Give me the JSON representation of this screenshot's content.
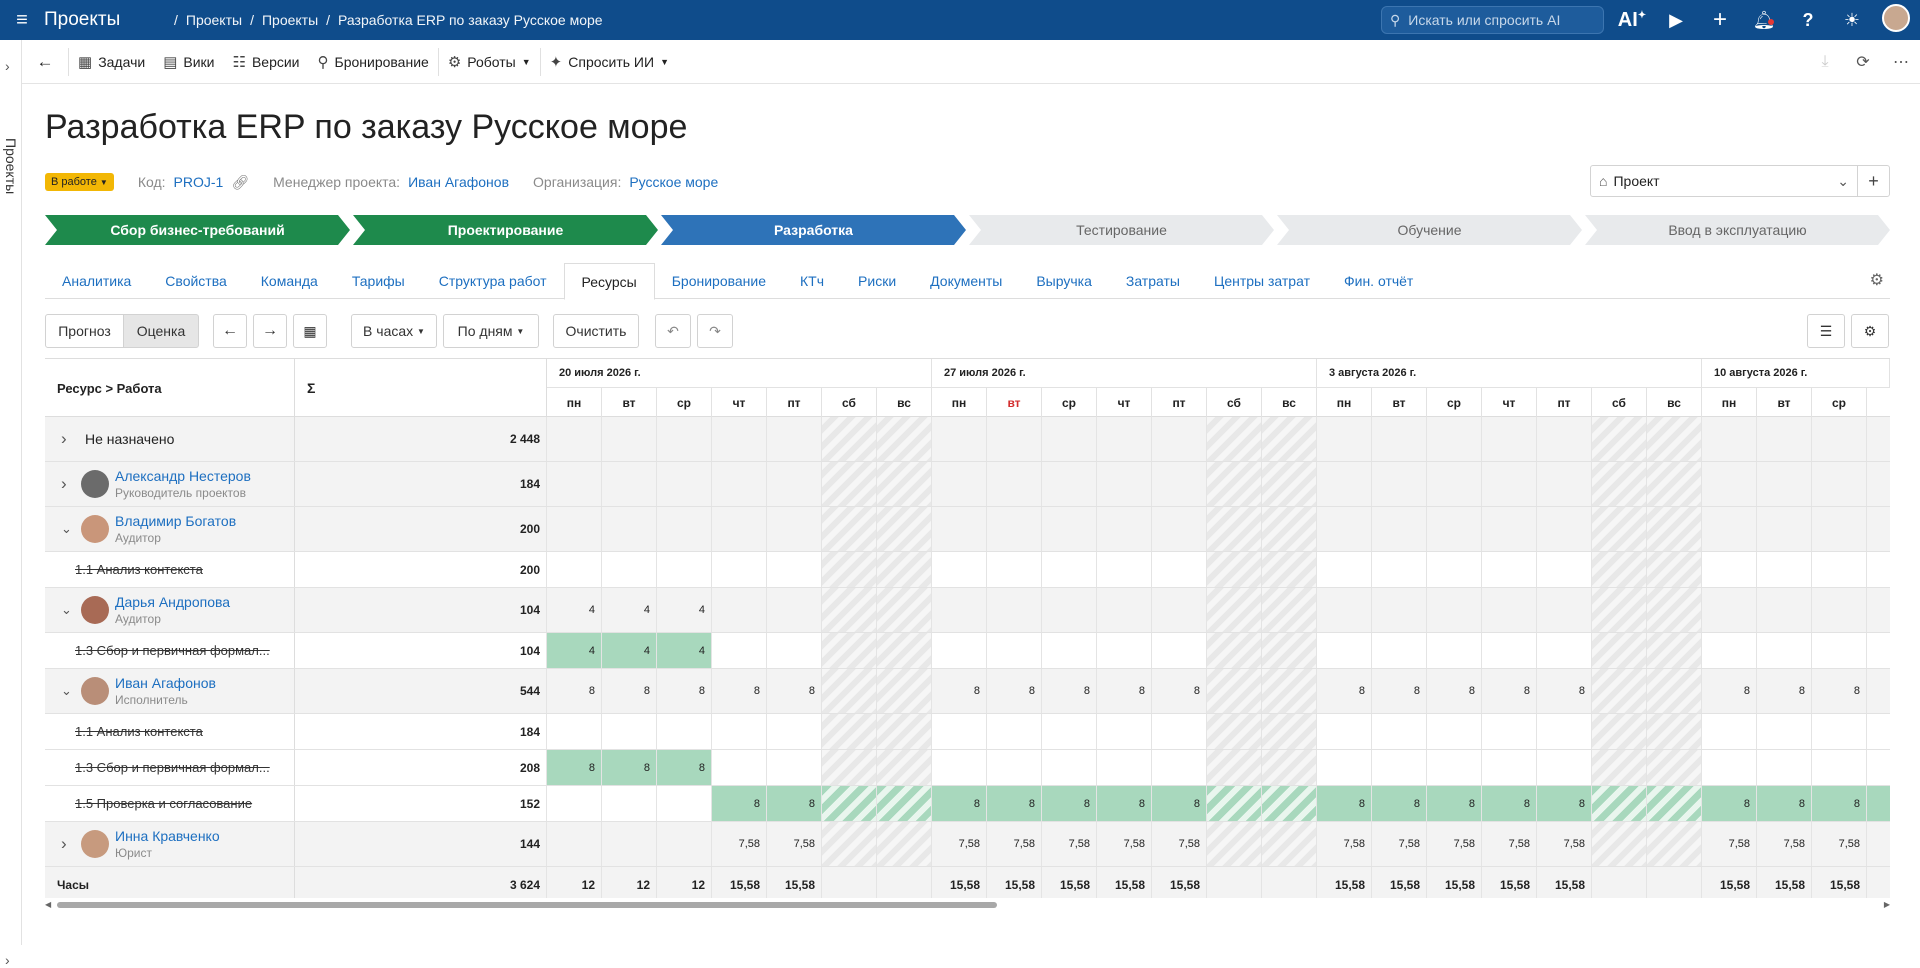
{
  "topbar": {
    "app": "Проекты",
    "crumbs": [
      "Проекты",
      "Проекты",
      "Разработка ERP по заказу Русское море"
    ],
    "search_placeholder": "Искать или спросить AI",
    "ai_label": "AI"
  },
  "sidebar": {
    "label": "Проекты"
  },
  "toolbar": {
    "items": [
      {
        "icon": "tasks-icon",
        "label": "Задачи"
      },
      {
        "icon": "wiki-icon",
        "label": "Вики"
      },
      {
        "icon": "versions-icon",
        "label": "Версии"
      },
      {
        "icon": "booking-icon",
        "label": "Бронирование"
      },
      {
        "icon": "robot-icon",
        "label": "Роботы"
      },
      {
        "icon": "ai-sparkle-icon",
        "label": "Спросить ИИ"
      }
    ]
  },
  "project": {
    "title": "Разработка ERP по заказу Русское море",
    "status": "В работе",
    "code_label": "Код:",
    "code": "PROJ-1",
    "manager_label": "Менеджер проекта:",
    "manager": "Иван Агафонов",
    "org_label": "Организация:",
    "org": "Русское море",
    "selector": "Проект"
  },
  "stages": [
    {
      "label": "Сбор бизнес-требований",
      "state": "done"
    },
    {
      "label": "Проектирование",
      "state": "done"
    },
    {
      "label": "Разработка",
      "state": "current"
    },
    {
      "label": "Тестирование",
      "state": "todo"
    },
    {
      "label": "Обучение",
      "state": "todo"
    },
    {
      "label": "Ввод в эксплуатацию",
      "state": "todo"
    }
  ],
  "tabs": [
    "Аналитика",
    "Свойства",
    "Команда",
    "Тарифы",
    "Структура работ",
    "Ресурсы",
    "Бронирование",
    "КТч",
    "Риски",
    "Документы",
    "Выручка",
    "Затраты",
    "Центры затрат",
    "Фин. отчёт"
  ],
  "active_tab": "Ресурсы",
  "controls": {
    "forecast": "Прогноз",
    "estimate": "Оценка",
    "units": "В часах",
    "period": "По дням",
    "clear": "Очистить"
  },
  "grid": {
    "col_resource": "Ресурс > Работа",
    "col_sum": "Σ",
    "weeks": [
      "20 июля 2026 г.",
      "27 июля 2026 г.",
      "3 августа 2026 г.",
      "10 августа 2026 г."
    ],
    "days": [
      "пн",
      "вт",
      "ср",
      "чт",
      "пт",
      "сб",
      "вс",
      "пн",
      "вт",
      "ср",
      "чт",
      "пт",
      "сб",
      "вс",
      "пн",
      "вт",
      "ср",
      "чт",
      "пт",
      "сб",
      "вс",
      "пн",
      "вт",
      "ср",
      "ч"
    ],
    "rows": [
      {
        "type": "group",
        "name": "Не назначено",
        "role": "",
        "sum": "2 448",
        "expanded": false,
        "avatar": "",
        "vals": [
          "",
          "",
          "",
          "",
          "",
          "",
          "",
          "",
          "",
          "",
          "",
          "",
          "",
          "",
          "",
          "",
          "",
          "",
          "",
          "",
          "",
          "",
          "",
          "",
          ""
        ]
      },
      {
        "type": "person",
        "name": "Александр Нестеров",
        "role": "Руководитель проектов",
        "sum": "184",
        "expanded": false,
        "avatar": "#6b6b6b",
        "vals": [
          "",
          "",
          "",
          "",
          "",
          "",
          "",
          "",
          "",
          "",
          "",
          "",
          "",
          "",
          "",
          "",
          "",
          "",
          "",
          "",
          "",
          "",
          "",
          "",
          ""
        ]
      },
      {
        "type": "person",
        "name": "Владимир Богатов",
        "role": "Аудитор",
        "sum": "200",
        "expanded": true,
        "avatar": "#c9967a",
        "vals": [
          "",
          "",
          "",
          "",
          "",
          "",
          "",
          "",
          "",
          "",
          "",
          "",
          "",
          "",
          "",
          "",
          "",
          "",
          "",
          "",
          "",
          "",
          "",
          "",
          ""
        ]
      },
      {
        "type": "task",
        "name": "1.1 Анализ контекста",
        "sum": "200",
        "vals": [
          "",
          "",
          "",
          "",
          "",
          "",
          "",
          "",
          "",
          "",
          "",
          "",
          "",
          "",
          "",
          "",
          "",
          "",
          "",
          "",
          "",
          "",
          "",
          "",
          ""
        ],
        "fill": []
      },
      {
        "type": "person",
        "name": "Дарья Андропова",
        "role": "Аудитор",
        "sum": "104",
        "expanded": true,
        "avatar": "#a86a55",
        "vals": [
          "4",
          "4",
          "4",
          "",
          "",
          "",
          "",
          "",
          "",
          "",
          "",
          "",
          "",
          "",
          "",
          "",
          "",
          "",
          "",
          "",
          "",
          "",
          "",
          "",
          ""
        ]
      },
      {
        "type": "task",
        "name": "1.3 Сбор и первичная формал...",
        "sum": "104",
        "vals": [
          "4",
          "4",
          "4",
          "",
          "",
          "",
          "",
          "",
          "",
          "",
          "",
          "",
          "",
          "",
          "",
          "",
          "",
          "",
          "",
          "",
          "",
          "",
          "",
          "",
          ""
        ],
        "fill": [
          0,
          1,
          2
        ]
      },
      {
        "type": "person",
        "name": "Иван Агафонов",
        "role": "Исполнитель",
        "sum": "544",
        "expanded": true,
        "avatar": "#b98e78",
        "vals": [
          "8",
          "8",
          "8",
          "8",
          "8",
          "",
          "",
          "8",
          "8",
          "8",
          "8",
          "8",
          "",
          "",
          "8",
          "8",
          "8",
          "8",
          "8",
          "",
          "",
          "8",
          "8",
          "8",
          ""
        ]
      },
      {
        "type": "task",
        "name": "1.1 Анализ контекста",
        "sum": "184",
        "vals": [
          "",
          "",
          "",
          "",
          "",
          "",
          "",
          "",
          "",
          "",
          "",
          "",
          "",
          "",
          "",
          "",
          "",
          "",
          "",
          "",
          "",
          "",
          "",
          "",
          ""
        ],
        "fill": []
      },
      {
        "type": "task",
        "name": "1.3 Сбор и первичная формал...",
        "sum": "208",
        "vals": [
          "8",
          "8",
          "8",
          "",
          "",
          "",
          "",
          "",
          "",
          "",
          "",
          "",
          "",
          "",
          "",
          "",
          "",
          "",
          "",
          "",
          "",
          "",
          "",
          "",
          ""
        ],
        "fill": [
          0,
          1,
          2
        ]
      },
      {
        "type": "task",
        "name": "1.5 Проверка и согласование",
        "sum": "152",
        "vals": [
          "",
          "",
          "",
          "8",
          "8",
          "",
          "",
          "8",
          "8",
          "8",
          "8",
          "8",
          "",
          "",
          "8",
          "8",
          "8",
          "8",
          "8",
          "",
          "",
          "8",
          "8",
          "8",
          ""
        ],
        "fill": [
          3,
          4,
          5,
          6,
          7,
          8,
          9,
          10,
          11,
          12,
          13,
          14,
          15,
          16,
          17,
          18,
          19,
          20,
          21,
          22,
          23,
          24
        ]
      },
      {
        "type": "person",
        "name": "Инна Кравченко",
        "role": "Юрист",
        "sum": "144",
        "expanded": false,
        "avatar": "#c79a7e",
        "vals": [
          "",
          "",
          "",
          "7,58",
          "7,58",
          "",
          "",
          "7,58",
          "7,58",
          "7,58",
          "7,58",
          "7,58",
          "",
          "",
          "7,58",
          "7,58",
          "7,58",
          "7,58",
          "7,58",
          "",
          "",
          "7,58",
          "7,58",
          "7,58",
          ""
        ]
      },
      {
        "type": "total",
        "name": "Часы",
        "sum": "3 624",
        "vals": [
          "12",
          "12",
          "12",
          "15,58",
          "15,58",
          "",
          "",
          "15,58",
          "15,58",
          "15,58",
          "15,58",
          "15,58",
          "",
          "",
          "15,58",
          "15,58",
          "15,58",
          "15,58",
          "15,58",
          "",
          "",
          "15,58",
          "15,58",
          "15,58",
          ""
        ]
      }
    ]
  },
  "colors": {
    "topbar": "#0f4c8b",
    "done": "#1e8a4c",
    "current": "#2e73b8",
    "status_badge": "#f2b705",
    "fill": "#a8d8bd",
    "link": "#1d6fc0"
  }
}
